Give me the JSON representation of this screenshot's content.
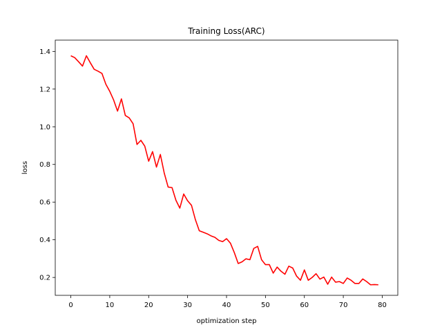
{
  "chart_data": {
    "type": "line",
    "title": "Training Loss(ARC)",
    "xlabel": "optimization step",
    "ylabel": "loss",
    "xlim": [
      -4,
      84
    ],
    "ylim": [
      0.105,
      1.46
    ],
    "x_ticks": [
      0,
      10,
      20,
      30,
      40,
      50,
      60,
      70,
      80
    ],
    "y_ticks": [
      0.2,
      0.4,
      0.6,
      0.8,
      1.0,
      1.2,
      1.4
    ],
    "y_tick_labels": [
      "0.2",
      "0.4",
      "0.6",
      "0.8",
      "1.0",
      "1.2",
      "1.4"
    ],
    "grid": false,
    "series": [
      {
        "color": "#ff0000",
        "x": [
          0,
          1,
          2,
          3,
          4,
          5,
          6,
          7,
          8,
          9,
          10,
          11,
          12,
          13,
          14,
          15,
          16,
          17,
          18,
          19,
          20,
          21,
          22,
          23,
          24,
          25,
          26,
          27,
          28,
          29,
          30,
          31,
          32,
          33,
          34,
          35,
          36,
          37,
          38,
          39,
          40,
          41,
          42,
          43,
          44,
          45,
          46,
          47,
          48,
          49,
          50,
          51,
          52,
          53,
          54,
          55,
          56,
          57,
          58,
          59,
          60,
          61,
          62,
          63,
          64,
          65,
          66,
          67,
          68,
          69,
          70,
          71,
          72,
          73,
          74,
          75,
          76,
          77,
          78,
          79
        ],
        "y": [
          1.377,
          1.367,
          1.345,
          1.322,
          1.377,
          1.34,
          1.305,
          1.295,
          1.283,
          1.226,
          1.188,
          1.142,
          1.083,
          1.148,
          1.06,
          1.047,
          1.016,
          0.906,
          0.928,
          0.897,
          0.817,
          0.868,
          0.786,
          0.853,
          0.754,
          0.68,
          0.677,
          0.61,
          0.568,
          0.643,
          0.607,
          0.583,
          0.507,
          0.448,
          0.44,
          0.432,
          0.421,
          0.413,
          0.397,
          0.39,
          0.406,
          0.382,
          0.332,
          0.274,
          0.283,
          0.299,
          0.294,
          0.354,
          0.365,
          0.294,
          0.268,
          0.268,
          0.223,
          0.255,
          0.233,
          0.217,
          0.26,
          0.25,
          0.207,
          0.185,
          0.24,
          0.185,
          0.2,
          0.22,
          0.191,
          0.202,
          0.164,
          0.202,
          0.175,
          0.178,
          0.168,
          0.197,
          0.185,
          0.168,
          0.168,
          0.192,
          0.178,
          0.161,
          0.162,
          0.161
        ]
      }
    ]
  }
}
